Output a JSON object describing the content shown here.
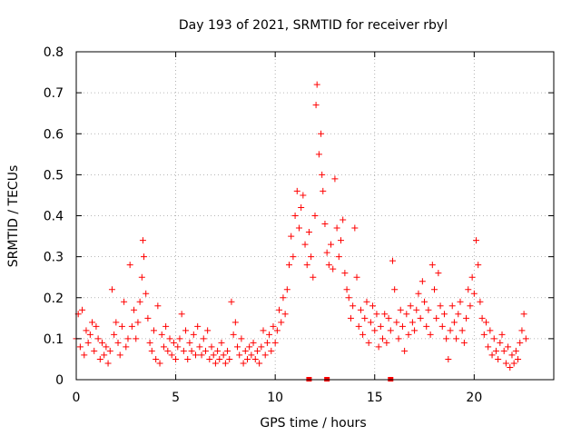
{
  "chart_data": {
    "type": "scatter",
    "title": "Day 193 of 2021, SRMTID for receiver rbyl",
    "xlabel": "GPS time / hours",
    "ylabel": "SRMTID / TECUs",
    "xlim": [
      0,
      24
    ],
    "ylim": [
      0,
      0.8
    ],
    "xticks": [
      0,
      5,
      10,
      15,
      20
    ],
    "xtick_labels": [
      "0",
      "5",
      "10",
      "15",
      "20"
    ],
    "yticks": [
      0,
      0.1,
      0.2,
      0.3,
      0.4,
      0.5,
      0.6,
      0.7,
      0.8
    ],
    "ytick_labels": [
      "0",
      "0.1",
      "0.2",
      "0.3",
      "0.4",
      "0.5",
      "0.6",
      "0.7",
      "0.8"
    ],
    "grid": true,
    "marker": "plus",
    "color": "#ff0000",
    "series": [
      {
        "name": "SRMTID",
        "points": [
          [
            0.0,
            0.1
          ],
          [
            0.1,
            0.16
          ],
          [
            0.2,
            0.08
          ],
          [
            0.3,
            0.17
          ],
          [
            0.4,
            0.06
          ],
          [
            0.5,
            0.12
          ],
          [
            0.6,
            0.09
          ],
          [
            0.7,
            0.11
          ],
          [
            0.8,
            0.14
          ],
          [
            0.9,
            0.07
          ],
          [
            1.0,
            0.13
          ],
          [
            1.1,
            0.1
          ],
          [
            1.2,
            0.05
          ],
          [
            1.3,
            0.09
          ],
          [
            1.4,
            0.06
          ],
          [
            1.5,
            0.08
          ],
          [
            1.6,
            0.04
          ],
          [
            1.7,
            0.07
          ],
          [
            1.8,
            0.22
          ],
          [
            1.9,
            0.11
          ],
          [
            2.0,
            0.14
          ],
          [
            2.1,
            0.09
          ],
          [
            2.2,
            0.06
          ],
          [
            2.3,
            0.13
          ],
          [
            2.4,
            0.19
          ],
          [
            2.5,
            0.08
          ],
          [
            2.6,
            0.1
          ],
          [
            2.7,
            0.28
          ],
          [
            2.8,
            0.13
          ],
          [
            2.9,
            0.17
          ],
          [
            3.0,
            0.1
          ],
          [
            3.1,
            0.14
          ],
          [
            3.2,
            0.19
          ],
          [
            3.3,
            0.25
          ],
          [
            3.35,
            0.34
          ],
          [
            3.4,
            0.3
          ],
          [
            3.5,
            0.21
          ],
          [
            3.6,
            0.15
          ],
          [
            3.7,
            0.09
          ],
          [
            3.8,
            0.07
          ],
          [
            3.9,
            0.12
          ],
          [
            4.0,
            0.05
          ],
          [
            4.1,
            0.18
          ],
          [
            4.2,
            0.04
          ],
          [
            4.3,
            0.11
          ],
          [
            4.4,
            0.08
          ],
          [
            4.5,
            0.13
          ],
          [
            4.6,
            0.07
          ],
          [
            4.7,
            0.1
          ],
          [
            4.8,
            0.06
          ],
          [
            4.9,
            0.09
          ],
          [
            5.0,
            0.05
          ],
          [
            5.1,
            0.08
          ],
          [
            5.2,
            0.1
          ],
          [
            5.3,
            0.16
          ],
          [
            5.4,
            0.07
          ],
          [
            5.5,
            0.12
          ],
          [
            5.6,
            0.05
          ],
          [
            5.7,
            0.09
          ],
          [
            5.8,
            0.07
          ],
          [
            5.9,
            0.11
          ],
          [
            6.0,
            0.06
          ],
          [
            6.1,
            0.13
          ],
          [
            6.2,
            0.08
          ],
          [
            6.3,
            0.06
          ],
          [
            6.4,
            0.1
          ],
          [
            6.5,
            0.07
          ],
          [
            6.6,
            0.12
          ],
          [
            6.7,
            0.05
          ],
          [
            6.8,
            0.08
          ],
          [
            6.9,
            0.06
          ],
          [
            7.0,
            0.04
          ],
          [
            7.1,
            0.07
          ],
          [
            7.2,
            0.05
          ],
          [
            7.3,
            0.09
          ],
          [
            7.4,
            0.06
          ],
          [
            7.5,
            0.04
          ],
          [
            7.6,
            0.07
          ],
          [
            7.7,
            0.05
          ],
          [
            7.8,
            0.19
          ],
          [
            7.9,
            0.11
          ],
          [
            8.0,
            0.14
          ],
          [
            8.1,
            0.08
          ],
          [
            8.2,
            0.06
          ],
          [
            8.3,
            0.1
          ],
          [
            8.4,
            0.04
          ],
          [
            8.5,
            0.07
          ],
          [
            8.6,
            0.05
          ],
          [
            8.7,
            0.08
          ],
          [
            8.8,
            0.06
          ],
          [
            8.9,
            0.09
          ],
          [
            9.0,
            0.05
          ],
          [
            9.1,
            0.07
          ],
          [
            9.2,
            0.04
          ],
          [
            9.3,
            0.08
          ],
          [
            9.4,
            0.12
          ],
          [
            9.5,
            0.06
          ],
          [
            9.6,
            0.09
          ],
          [
            9.7,
            0.11
          ],
          [
            9.8,
            0.07
          ],
          [
            9.9,
            0.13
          ],
          [
            10.0,
            0.09
          ],
          [
            10.1,
            0.12
          ],
          [
            10.2,
            0.17
          ],
          [
            10.3,
            0.14
          ],
          [
            10.4,
            0.2
          ],
          [
            10.5,
            0.16
          ],
          [
            10.6,
            0.22
          ],
          [
            10.7,
            0.28
          ],
          [
            10.8,
            0.35
          ],
          [
            10.9,
            0.3
          ],
          [
            11.0,
            0.4
          ],
          [
            11.1,
            0.46
          ],
          [
            11.2,
            0.37
          ],
          [
            11.3,
            0.42
          ],
          [
            11.4,
            0.45
          ],
          [
            11.5,
            0.33
          ],
          [
            11.6,
            0.28
          ],
          [
            11.7,
            0.36
          ],
          [
            11.8,
            0.3
          ],
          [
            11.9,
            0.25
          ],
          [
            12.0,
            0.4
          ],
          [
            12.05,
            0.67
          ],
          [
            12.1,
            0.72
          ],
          [
            12.2,
            0.55
          ],
          [
            12.3,
            0.6
          ],
          [
            12.35,
            0.5
          ],
          [
            12.4,
            0.46
          ],
          [
            12.5,
            0.38
          ],
          [
            12.6,
            0.31
          ],
          [
            12.7,
            0.28
          ],
          [
            12.8,
            0.33
          ],
          [
            12.9,
            0.27
          ],
          [
            13.0,
            0.49
          ],
          [
            13.1,
            0.37
          ],
          [
            13.2,
            0.3
          ],
          [
            13.3,
            0.34
          ],
          [
            13.4,
            0.39
          ],
          [
            13.5,
            0.26
          ],
          [
            13.6,
            0.22
          ],
          [
            13.7,
            0.2
          ],
          [
            13.8,
            0.15
          ],
          [
            13.9,
            0.18
          ],
          [
            14.0,
            0.37
          ],
          [
            14.1,
            0.25
          ],
          [
            14.2,
            0.13
          ],
          [
            14.3,
            0.17
          ],
          [
            14.4,
            0.11
          ],
          [
            14.5,
            0.15
          ],
          [
            14.6,
            0.19
          ],
          [
            14.7,
            0.09
          ],
          [
            14.8,
            0.14
          ],
          [
            14.9,
            0.18
          ],
          [
            15.0,
            0.12
          ],
          [
            15.1,
            0.16
          ],
          [
            15.2,
            0.08
          ],
          [
            15.3,
            0.13
          ],
          [
            15.4,
            0.1
          ],
          [
            15.5,
            0.16
          ],
          [
            15.6,
            0.09
          ],
          [
            15.7,
            0.15
          ],
          [
            15.8,
            0.12
          ],
          [
            15.9,
            0.29
          ],
          [
            16.0,
            0.22
          ],
          [
            16.1,
            0.14
          ],
          [
            16.2,
            0.1
          ],
          [
            16.3,
            0.17
          ],
          [
            16.4,
            0.13
          ],
          [
            16.5,
            0.07
          ],
          [
            16.6,
            0.16
          ],
          [
            16.7,
            0.11
          ],
          [
            16.8,
            0.18
          ],
          [
            16.9,
            0.14
          ],
          [
            17.0,
            0.12
          ],
          [
            17.1,
            0.17
          ],
          [
            17.2,
            0.21
          ],
          [
            17.3,
            0.15
          ],
          [
            17.4,
            0.24
          ],
          [
            17.5,
            0.19
          ],
          [
            17.6,
            0.13
          ],
          [
            17.7,
            0.17
          ],
          [
            17.8,
            0.11
          ],
          [
            17.9,
            0.28
          ],
          [
            18.0,
            0.22
          ],
          [
            18.1,
            0.15
          ],
          [
            18.2,
            0.26
          ],
          [
            18.3,
            0.18
          ],
          [
            18.4,
            0.13
          ],
          [
            18.5,
            0.16
          ],
          [
            18.6,
            0.1
          ],
          [
            18.7,
            0.05
          ],
          [
            18.8,
            0.12
          ],
          [
            18.9,
            0.18
          ],
          [
            19.0,
            0.14
          ],
          [
            19.1,
            0.1
          ],
          [
            19.2,
            0.16
          ],
          [
            19.3,
            0.19
          ],
          [
            19.4,
            0.12
          ],
          [
            19.5,
            0.09
          ],
          [
            19.6,
            0.15
          ],
          [
            19.7,
            0.22
          ],
          [
            19.8,
            0.18
          ],
          [
            19.9,
            0.25
          ],
          [
            20.0,
            0.21
          ],
          [
            20.1,
            0.34
          ],
          [
            20.2,
            0.28
          ],
          [
            20.3,
            0.19
          ],
          [
            20.4,
            0.15
          ],
          [
            20.5,
            0.11
          ],
          [
            20.6,
            0.14
          ],
          [
            20.7,
            0.08
          ],
          [
            20.8,
            0.12
          ],
          [
            20.9,
            0.06
          ],
          [
            21.0,
            0.1
          ],
          [
            21.1,
            0.07
          ],
          [
            21.2,
            0.05
          ],
          [
            21.3,
            0.09
          ],
          [
            21.4,
            0.11
          ],
          [
            21.5,
            0.07
          ],
          [
            21.6,
            0.04
          ],
          [
            21.7,
            0.08
          ],
          [
            21.8,
            0.03
          ],
          [
            21.9,
            0.06
          ],
          [
            22.0,
            0.04
          ],
          [
            22.1,
            0.07
          ],
          [
            22.2,
            0.05
          ],
          [
            22.3,
            0.09
          ],
          [
            22.4,
            0.12
          ],
          [
            22.5,
            0.16
          ],
          [
            22.6,
            0.1
          ]
        ]
      }
    ],
    "baseline_markers": [
      11.7,
      12.6,
      15.8
    ]
  }
}
